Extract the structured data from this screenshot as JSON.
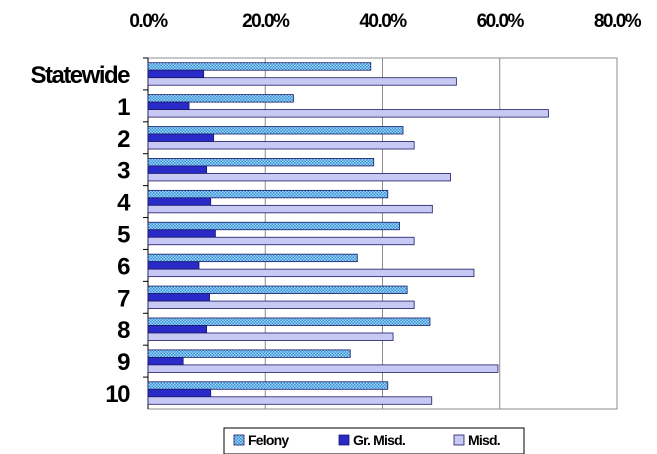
{
  "chart_data": {
    "type": "bar",
    "orientation": "horizontal",
    "x_axis_position": "top",
    "grid": true,
    "legend_position": "bottom",
    "xlim": [
      0,
      80
    ],
    "ticks": [
      "0.0%",
      "20.0%",
      "40.0%",
      "60.0%",
      "80.0%"
    ],
    "tick_values": [
      0,
      20,
      40,
      60,
      80
    ],
    "categories": [
      "Statewide",
      "1",
      "2",
      "3",
      "4",
      "5",
      "6",
      "7",
      "8",
      "9",
      "10"
    ],
    "series": [
      {
        "name": "Felony",
        "color": "#7ec8f0",
        "pattern": "checker",
        "values": [
          38.0,
          24.8,
          43.5,
          38.5,
          40.9,
          42.9,
          35.7,
          44.2,
          48.1,
          34.5,
          40.9
        ]
      },
      {
        "name": "Gr. Misd.",
        "color": "#2a2ac8",
        "pattern": "solid",
        "values": [
          9.5,
          7.0,
          11.2,
          10.0,
          10.7,
          11.5,
          8.7,
          10.5,
          10.0,
          6.0,
          10.7
        ]
      },
      {
        "name": "Misd.",
        "color": "#c8c8f4",
        "pattern": "solid",
        "values": [
          52.6,
          68.3,
          45.4,
          51.6,
          48.5,
          45.4,
          55.6,
          45.4,
          41.8,
          59.7,
          48.4
        ]
      }
    ]
  }
}
